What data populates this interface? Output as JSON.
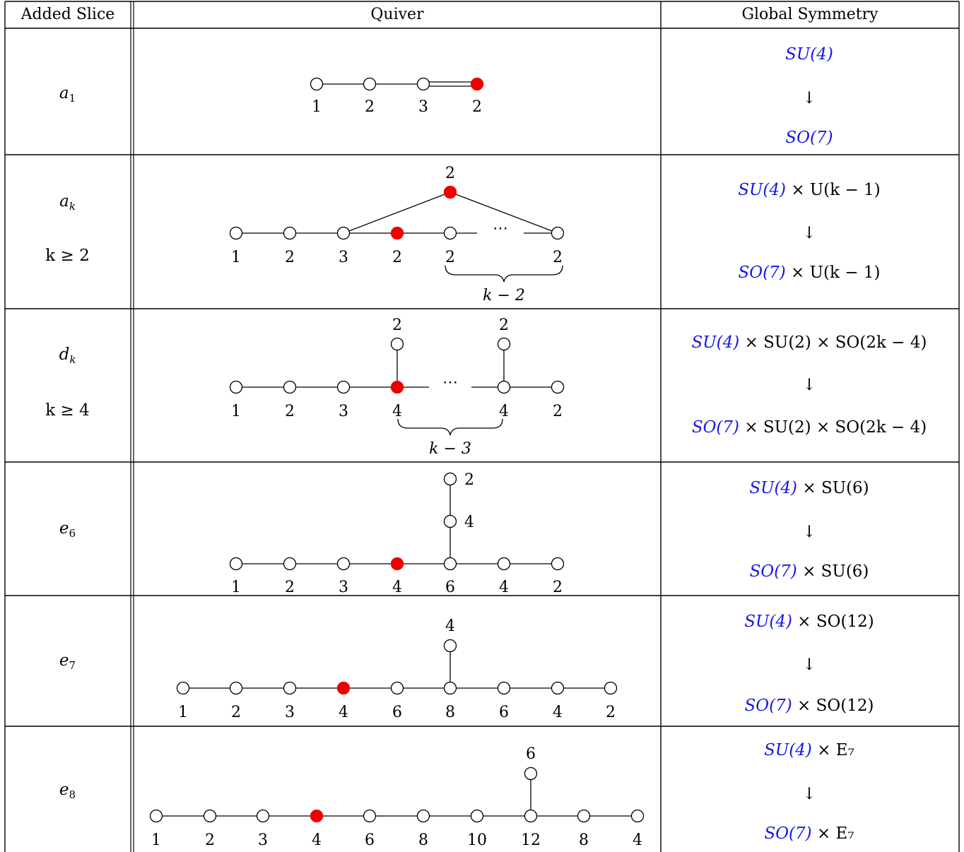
{
  "header": {
    "col1": "Added Slice",
    "col2": "Quiver",
    "col3": "Global Symmetry"
  },
  "colors": {
    "highlight_node": "#ee0000",
    "blue_text": "#1515e8"
  },
  "rows": [
    {
      "slice": "a",
      "slice_sub": "1",
      "slice_condition": "",
      "sym_top": {
        "blue": "SU(4)",
        "rest": ""
      },
      "arrow": "↓",
      "sym_bottom": {
        "blue": "SO(7)",
        "rest": ""
      },
      "quiver": {
        "bottom_labels": [
          "1",
          "2",
          "3",
          "2"
        ],
        "top_labels": [],
        "brace_label": ""
      }
    },
    {
      "slice": "a",
      "slice_sub": "k",
      "slice_condition": "k ≥ 2",
      "sym_top": {
        "blue": "SU(4)",
        "rest": " × U(k − 1)"
      },
      "arrow": "↓",
      "sym_bottom": {
        "blue": "SO(7)",
        "rest": " × U(k − 1)"
      },
      "quiver": {
        "bottom_labels": [
          "1",
          "2",
          "3",
          "2",
          "2",
          "2"
        ],
        "top_labels": [
          "2"
        ],
        "dots": "⋯",
        "brace_label": "k − 2"
      }
    },
    {
      "slice": "d",
      "slice_sub": "k",
      "slice_condition": "k ≥ 4",
      "sym_top": {
        "blue": "SU(4)",
        "rest": " × SU(2) × SO(2k − 4)"
      },
      "arrow": "↓",
      "sym_bottom": {
        "blue": "SO(7)",
        "rest": " × SU(2) × SO(2k − 4)"
      },
      "quiver": {
        "bottom_labels": [
          "1",
          "2",
          "3",
          "4",
          "4",
          "2"
        ],
        "top_labels": [
          "2",
          "2"
        ],
        "dots": "⋯",
        "brace_label": "k − 3"
      }
    },
    {
      "slice": "e",
      "slice_sub": "6",
      "slice_condition": "",
      "sym_top": {
        "blue": "SU(4)",
        "rest": " × SU(6)"
      },
      "arrow": "↓",
      "sym_bottom": {
        "blue": "SO(7)",
        "rest": " × SU(6)"
      },
      "quiver": {
        "bottom_labels": [
          "1",
          "2",
          "3",
          "4",
          "6",
          "4",
          "2"
        ],
        "top_labels": [
          "2",
          "4"
        ],
        "brace_label": ""
      }
    },
    {
      "slice": "e",
      "slice_sub": "7",
      "slice_condition": "",
      "sym_top": {
        "blue": "SU(4)",
        "rest": " × SO(12)"
      },
      "arrow": "↓",
      "sym_bottom": {
        "blue": "SO(7)",
        "rest": " × SO(12)"
      },
      "quiver": {
        "bottom_labels": [
          "1",
          "2",
          "3",
          "4",
          "6",
          "8",
          "6",
          "4",
          "2"
        ],
        "top_labels": [
          "4"
        ],
        "brace_label": ""
      }
    },
    {
      "slice": "e",
      "slice_sub": "8",
      "slice_condition": "",
      "sym_top": {
        "blue": "SU(4)",
        "rest": " × E₇"
      },
      "arrow": "↓",
      "sym_bottom": {
        "blue": "SO(7)",
        "rest": " × E₇"
      },
      "quiver": {
        "bottom_labels": [
          "1",
          "2",
          "3",
          "4",
          "6",
          "8",
          "10",
          "12",
          "8",
          "4"
        ],
        "top_labels": [
          "6"
        ],
        "brace_label": ""
      }
    }
  ]
}
